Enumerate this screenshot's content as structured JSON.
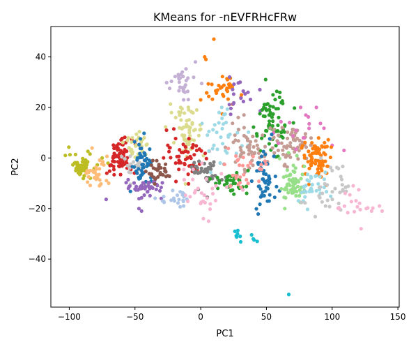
{
  "chart_data": {
    "type": "scatter",
    "title": "KMeans for -nEVFRHcFRw",
    "xlabel": "PC1",
    "ylabel": "PC2",
    "xlim": [
      -114,
      151
    ],
    "ylim": [
      -59,
      52
    ],
    "xticks": [
      -100,
      -50,
      0,
      50,
      100,
      150
    ],
    "yticks": [
      -40,
      -20,
      0,
      20,
      40
    ],
    "grid": false,
    "legend": "none",
    "clusters": [
      {
        "color": "#bcbd22",
        "center": [
          -90,
          -3
        ],
        "spread": [
          5,
          2.5
        ],
        "n": 45,
        "points": [
          [
            -103,
            1
          ],
          [
            -75,
            0
          ],
          [
            -84,
            -8
          ],
          [
            -95,
            -5
          ],
          [
            -90,
            -5
          ],
          [
            -96,
            -2
          ]
        ]
      },
      {
        "color": "#ffbb78",
        "center": [
          -80,
          -6
        ],
        "spread": [
          5,
          3
        ],
        "n": 30,
        "points": [
          [
            -70,
            -10
          ],
          [
            -77,
            -11
          ],
          [
            -87,
            -6
          ],
          [
            -82,
            -5
          ]
        ]
      },
      {
        "color": "#d62728",
        "center": [
          -62,
          0
        ],
        "spread": [
          5,
          4
        ],
        "n": 70,
        "points": [
          [
            -63,
            4
          ],
          [
            -56,
            -4
          ],
          [
            -59,
            2
          ],
          [
            -69,
            -3
          ],
          [
            -64,
            4
          ]
        ]
      },
      {
        "color": "#dbdb8d",
        "center": [
          -48,
          5
        ],
        "spread": [
          5,
          3
        ],
        "n": 25,
        "points": [
          [
            -52,
            8
          ],
          [
            -43,
            8
          ],
          [
            -47,
            5
          ],
          [
            -55,
            8
          ]
        ]
      },
      {
        "color": "#c7c7c7",
        "center": [
          -50,
          -3
        ],
        "spread": [
          5,
          3
        ],
        "n": 20,
        "points": [
          [
            -54,
            -4
          ],
          [
            -48,
            -3
          ]
        ]
      },
      {
        "color": "#1f77b4",
        "center": [
          -44,
          -1
        ],
        "spread": [
          3.5,
          3.5
        ],
        "n": 45,
        "points": [
          [
            -46,
            -8
          ],
          [
            -42,
            -1
          ],
          [
            -43,
            2
          ],
          [
            -45,
            -5
          ],
          [
            -39,
            -1
          ]
        ]
      },
      {
        "color": "#9467bd",
        "center": [
          -42,
          -12
        ],
        "spread": [
          7,
          1.8
        ],
        "n": 45,
        "points": [
          [
            -47,
            -20
          ],
          [
            -45,
            -21
          ],
          [
            -55,
            -12
          ],
          [
            -30,
            -16
          ]
        ]
      },
      {
        "color": "#8c564b",
        "center": [
          -32,
          -5
        ],
        "spread": [
          5,
          2
        ],
        "n": 30,
        "points": [
          [
            -27,
            -5
          ],
          [
            -36,
            -4
          ],
          [
            -25,
            -7
          ]
        ]
      },
      {
        "color": "#c5b0d5",
        "center": [
          -15,
          30
        ],
        "spread": [
          5,
          3
        ],
        "n": 25,
        "points": [
          [
            -17,
            33
          ],
          [
            -14,
            34
          ],
          [
            -12,
            26
          ],
          [
            -4,
            38
          ],
          [
            -13,
            23
          ]
        ]
      },
      {
        "color": "#dbdb8d",
        "center": [
          -10,
          10
        ],
        "spread": [
          7,
          5
        ],
        "n": 55,
        "points": [
          [
            -15,
            15
          ],
          [
            -8,
            12
          ],
          [
            -11,
            7
          ],
          [
            -5,
            5
          ],
          [
            -19,
            16
          ],
          [
            -3,
            19
          ]
        ]
      },
      {
        "color": "#d62728",
        "center": [
          -10,
          0
        ],
        "spread": [
          8,
          5
        ],
        "n": 50,
        "points": [
          [
            -25,
            5
          ],
          [
            -26,
            11
          ],
          [
            -3,
            3
          ],
          [
            -19,
            -2
          ],
          [
            -10,
            0
          ]
        ]
      },
      {
        "color": "#7f7f7f",
        "center": [
          5,
          -6
        ],
        "spread": [
          7,
          3
        ],
        "n": 40,
        "points": [
          [
            8,
            -3
          ],
          [
            -2,
            -6
          ],
          [
            4,
            -8
          ],
          [
            11,
            -7
          ]
        ]
      },
      {
        "color": "#aec7e8",
        "center": [
          -20,
          -16
        ],
        "spread": [
          6,
          2
        ],
        "n": 20,
        "points": [
          [
            -20,
            -17
          ],
          [
            -13,
            -19
          ],
          [
            -29,
            -17
          ]
        ]
      },
      {
        "color": "#ff7f0e",
        "center": [
          15,
          27
        ],
        "spread": [
          7,
          4
        ],
        "n": 30,
        "points": [
          [
            10,
            47
          ],
          [
            3,
            40
          ],
          [
            4,
            39
          ],
          [
            24,
            28
          ],
          [
            16,
            28
          ],
          [
            0,
            23
          ],
          [
            31,
            25
          ]
        ]
      },
      {
        "color": "#9467bd",
        "center": [
          28,
          25
        ],
        "spread": [
          8,
          4
        ],
        "n": 15,
        "points": [
          [
            30,
            30
          ],
          [
            22,
            32
          ],
          [
            36,
            26
          ],
          [
            45,
            27
          ]
        ]
      },
      {
        "color": "#9edae5",
        "center": [
          18,
          10
        ],
        "spread": [
          8,
          6
        ],
        "n": 30,
        "points": [
          [
            16,
            20
          ],
          [
            14,
            18
          ],
          [
            10,
            5
          ],
          [
            20,
            2
          ],
          [
            28,
            10
          ]
        ]
      },
      {
        "color": "#2ca02c",
        "center": [
          55,
          14
        ],
        "spread": [
          6,
          6
        ],
        "n": 65,
        "points": [
          [
            55,
            25
          ],
          [
            60,
            24
          ],
          [
            52,
            17
          ],
          [
            59,
            6
          ],
          [
            48,
            20
          ],
          [
            64,
            13
          ]
        ]
      },
      {
        "color": "#c49c94",
        "center": [
          35,
          5
        ],
        "spread": [
          7,
          5
        ],
        "n": 45,
        "points": [
          [
            43,
            5
          ],
          [
            33,
            12
          ],
          [
            39,
            -1
          ],
          [
            47,
            9
          ],
          [
            26,
            9
          ]
        ]
      },
      {
        "color": "#c49c94",
        "center": [
          68,
          5
        ],
        "spread": [
          8,
          4
        ],
        "n": 55,
        "points": [
          [
            62,
            12
          ],
          [
            72,
            7
          ],
          [
            66,
            1
          ],
          [
            77,
            4
          ],
          [
            59,
            3
          ]
        ]
      },
      {
        "color": "#e377c2",
        "center": [
          75,
          10
        ],
        "spread": [
          10,
          6
        ],
        "n": 15,
        "points": [
          [
            76,
            20
          ],
          [
            80,
            17
          ],
          [
            100,
            5
          ],
          [
            88,
            20
          ],
          [
            109,
            3
          ]
        ]
      },
      {
        "color": "#ff7f0e",
        "center": [
          88,
          0
        ],
        "spread": [
          5,
          4
        ],
        "n": 75,
        "points": [
          [
            86,
            2
          ],
          [
            84,
            -1
          ],
          [
            93,
            -3
          ],
          [
            89,
            4
          ],
          [
            79,
            0
          ]
        ]
      },
      {
        "color": "#1f77b4",
        "center": [
          50,
          -8
        ],
        "spread": [
          5,
          6
        ],
        "n": 50,
        "points": [
          [
            47,
            -15
          ],
          [
            48,
            -5
          ],
          [
            52,
            -8
          ],
          [
            60,
            -13
          ],
          [
            45,
            -2
          ]
        ]
      },
      {
        "color": "#2ca02c",
        "center": [
          20,
          -10
        ],
        "spread": [
          7,
          2
        ],
        "n": 30,
        "points": [
          [
            20,
            -10
          ],
          [
            13,
            -12
          ],
          [
            25,
            -10
          ],
          [
            35,
            -14
          ],
          [
            36,
            -5
          ]
        ]
      },
      {
        "color": "#98df8a",
        "center": [
          70,
          -10
        ],
        "spread": [
          5,
          4
        ],
        "n": 55,
        "points": [
          [
            70,
            -13
          ],
          [
            67,
            -7
          ],
          [
            74,
            -9
          ],
          [
            64,
            -20
          ],
          [
            75,
            -15
          ]
        ]
      },
      {
        "color": "#9edae5",
        "center": [
          84,
          -12
        ],
        "spread": [
          7,
          3
        ],
        "n": 30,
        "points": [
          [
            91,
            -14
          ],
          [
            84,
            -12
          ],
          [
            78,
            -17
          ],
          [
            88,
            -7
          ]
        ]
      },
      {
        "color": "#c7c7c7",
        "center": [
          100,
          -12
        ],
        "spread": [
          8,
          5
        ],
        "n": 30,
        "points": [
          [
            100,
            -5
          ],
          [
            108,
            -13
          ],
          [
            95,
            -19
          ],
          [
            105,
            -18
          ],
          [
            90,
            -15
          ]
        ]
      },
      {
        "color": "#ff9896",
        "center": [
          32,
          -5
        ],
        "spread": [
          8,
          4
        ],
        "n": 25,
        "points": [
          [
            27,
            -7
          ],
          [
            28,
            -1
          ],
          [
            32,
            -3
          ],
          [
            38,
            -2
          ]
        ]
      },
      {
        "color": "#f7b6d2",
        "center": [
          5,
          -12
        ],
        "spread": [
          10,
          5
        ],
        "n": 25,
        "points": [
          [
            0,
            -18
          ],
          [
            2,
            -24
          ],
          [
            6,
            -25
          ],
          [
            -4,
            -13
          ],
          [
            -2,
            -12
          ]
        ]
      },
      {
        "color": "#f7b6d2",
        "center": [
          120,
          -18
        ],
        "spread": [
          8,
          3
        ],
        "n": 15,
        "points": [
          [
            122,
            -28
          ],
          [
            130,
            -21
          ],
          [
            138,
            -21
          ],
          [
            136,
            -19
          ],
          [
            116,
            -11
          ],
          [
            110,
            -14
          ],
          [
            126,
            -20
          ]
        ]
      },
      {
        "color": "#17becf",
        "center": [
          35,
          -31
        ],
        "spread": [
          5,
          1
        ],
        "n": 6,
        "points": [
          [
            26,
            -29
          ],
          [
            28,
            -30
          ],
          [
            30,
            -31
          ],
          [
            40,
            -32
          ],
          [
            43,
            -33
          ],
          [
            67,
            -54
          ]
        ]
      }
    ]
  }
}
